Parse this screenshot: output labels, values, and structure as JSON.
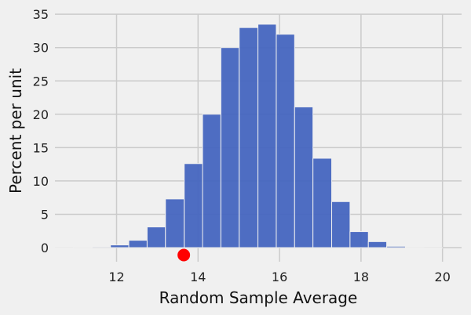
{
  "chart_data": {
    "type": "bar",
    "subtype": "histogram",
    "title": "",
    "xlabel": "Random Sample Average",
    "ylabel": "Percent per unit",
    "xlim": [
      10.49,
      20.5
    ],
    "ylim": [
      -2.3,
      35
    ],
    "xticks": [
      12,
      14,
      16,
      18,
      20
    ],
    "yticks": [
      0,
      5,
      10,
      15,
      20,
      25,
      30,
      35
    ],
    "grid": true,
    "bar_color": "#4565bf",
    "bin_edges": [
      10.49,
      10.94,
      11.4,
      11.85,
      12.3,
      12.75,
      13.2,
      13.66,
      14.11,
      14.56,
      15.01,
      15.47,
      15.92,
      16.37,
      16.82,
      17.28,
      17.73,
      18.18,
      18.63,
      19.09,
      19.54,
      19.99,
      20.45
    ],
    "values": [
      0.02,
      0.05,
      0.15,
      0.4,
      1.1,
      3.1,
      7.3,
      12.6,
      20.0,
      30.0,
      33.0,
      33.5,
      32.0,
      21.1,
      13.4,
      6.9,
      2.4,
      0.9,
      0.2,
      0.03,
      0.01,
      0.0
    ],
    "marker": {
      "x": 13.65,
      "y": -1.0,
      "color": "#ff0000",
      "shape": "circle"
    }
  }
}
